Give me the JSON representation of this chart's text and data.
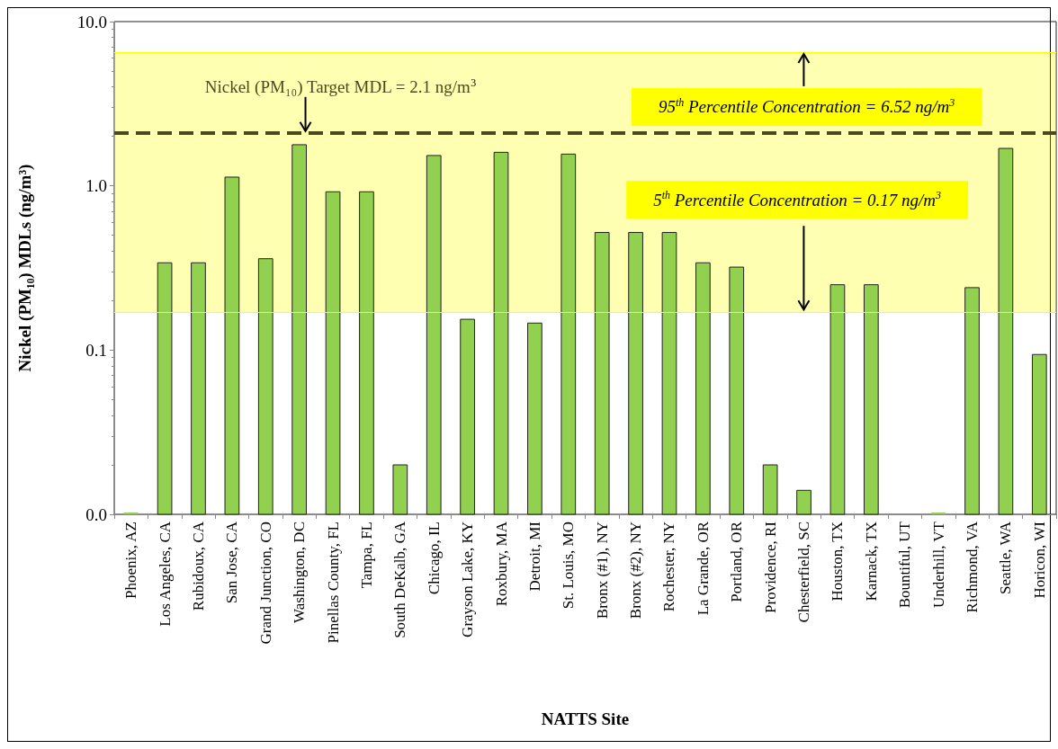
{
  "chart_data": {
    "type": "bar",
    "xlabel": "NATTS Site",
    "ylabel": "Nickel (PM₁₀) MDLs (ng/m³)",
    "categories": [
      "Phoenix, AZ",
      "Los Angeles, CA",
      "Rubidoux, CA",
      "San Jose, CA",
      "Grand Junction, CO",
      "Washington, DC",
      "Pinellas County, FL",
      "Tampa, FL",
      "South DeKalb, GA",
      "Chicago, IL",
      "Grayson Lake, KY",
      "Roxbury, MA",
      "Detroit, MI",
      "St. Louis, MO",
      "Bronx (#1), NY",
      "Bronx (#2), NY",
      "Rochester, NY",
      "La Grande, OR",
      "Portland, OR",
      "Providence, RI",
      "Chesterfield, SC",
      "Houston, TX",
      "Karnack, TX",
      "Bountiful, UT",
      "Underhill, VT",
      "Richmond, VA",
      "Seattle, WA",
      "Horicon, WI"
    ],
    "values": [
      0.01,
      0.34,
      0.34,
      1.13,
      0.36,
      1.78,
      0.92,
      0.92,
      0.02,
      1.53,
      0.154,
      1.6,
      0.146,
      1.56,
      0.52,
      0.52,
      0.52,
      0.34,
      0.32,
      0.02,
      0.014,
      0.25,
      0.25,
      null,
      0.01,
      0.24,
      1.69,
      0.094
    ],
    "color": "#92d050",
    "log": true,
    "ylim": [
      0.01,
      10
    ],
    "yticks": [
      {
        "value": 0.01,
        "label": "0.0"
      },
      {
        "value": 0.1,
        "label": "0.1"
      },
      {
        "value": 1,
        "label": "1.0"
      },
      {
        "value": 10,
        "label": "10.0"
      }
    ],
    "bands": [
      {
        "axis": "y",
        "from": 0.17,
        "to": 6.52,
        "color": "#ffff00"
      }
    ],
    "ref_lines": [
      {
        "axis": "y",
        "value": 2.1,
        "label": "Nickel (PM₁₀) Target MDL = 2.1 ng/m$^{3}$",
        "color": "#4a4a1c",
        "line_style": "dashed"
      },
      {
        "axis": "y",
        "value": 6.52,
        "label": "95$^{th}$ Percentile Concentration = 6.52 ng/m$^{3}$",
        "color": "#ffff00"
      },
      {
        "axis": "y",
        "value": 0.17,
        "label": "5$^{th}$ Percentile Concentration = 0.17 ng/m$^{3}$",
        "color": "#ffff00"
      }
    ]
  }
}
